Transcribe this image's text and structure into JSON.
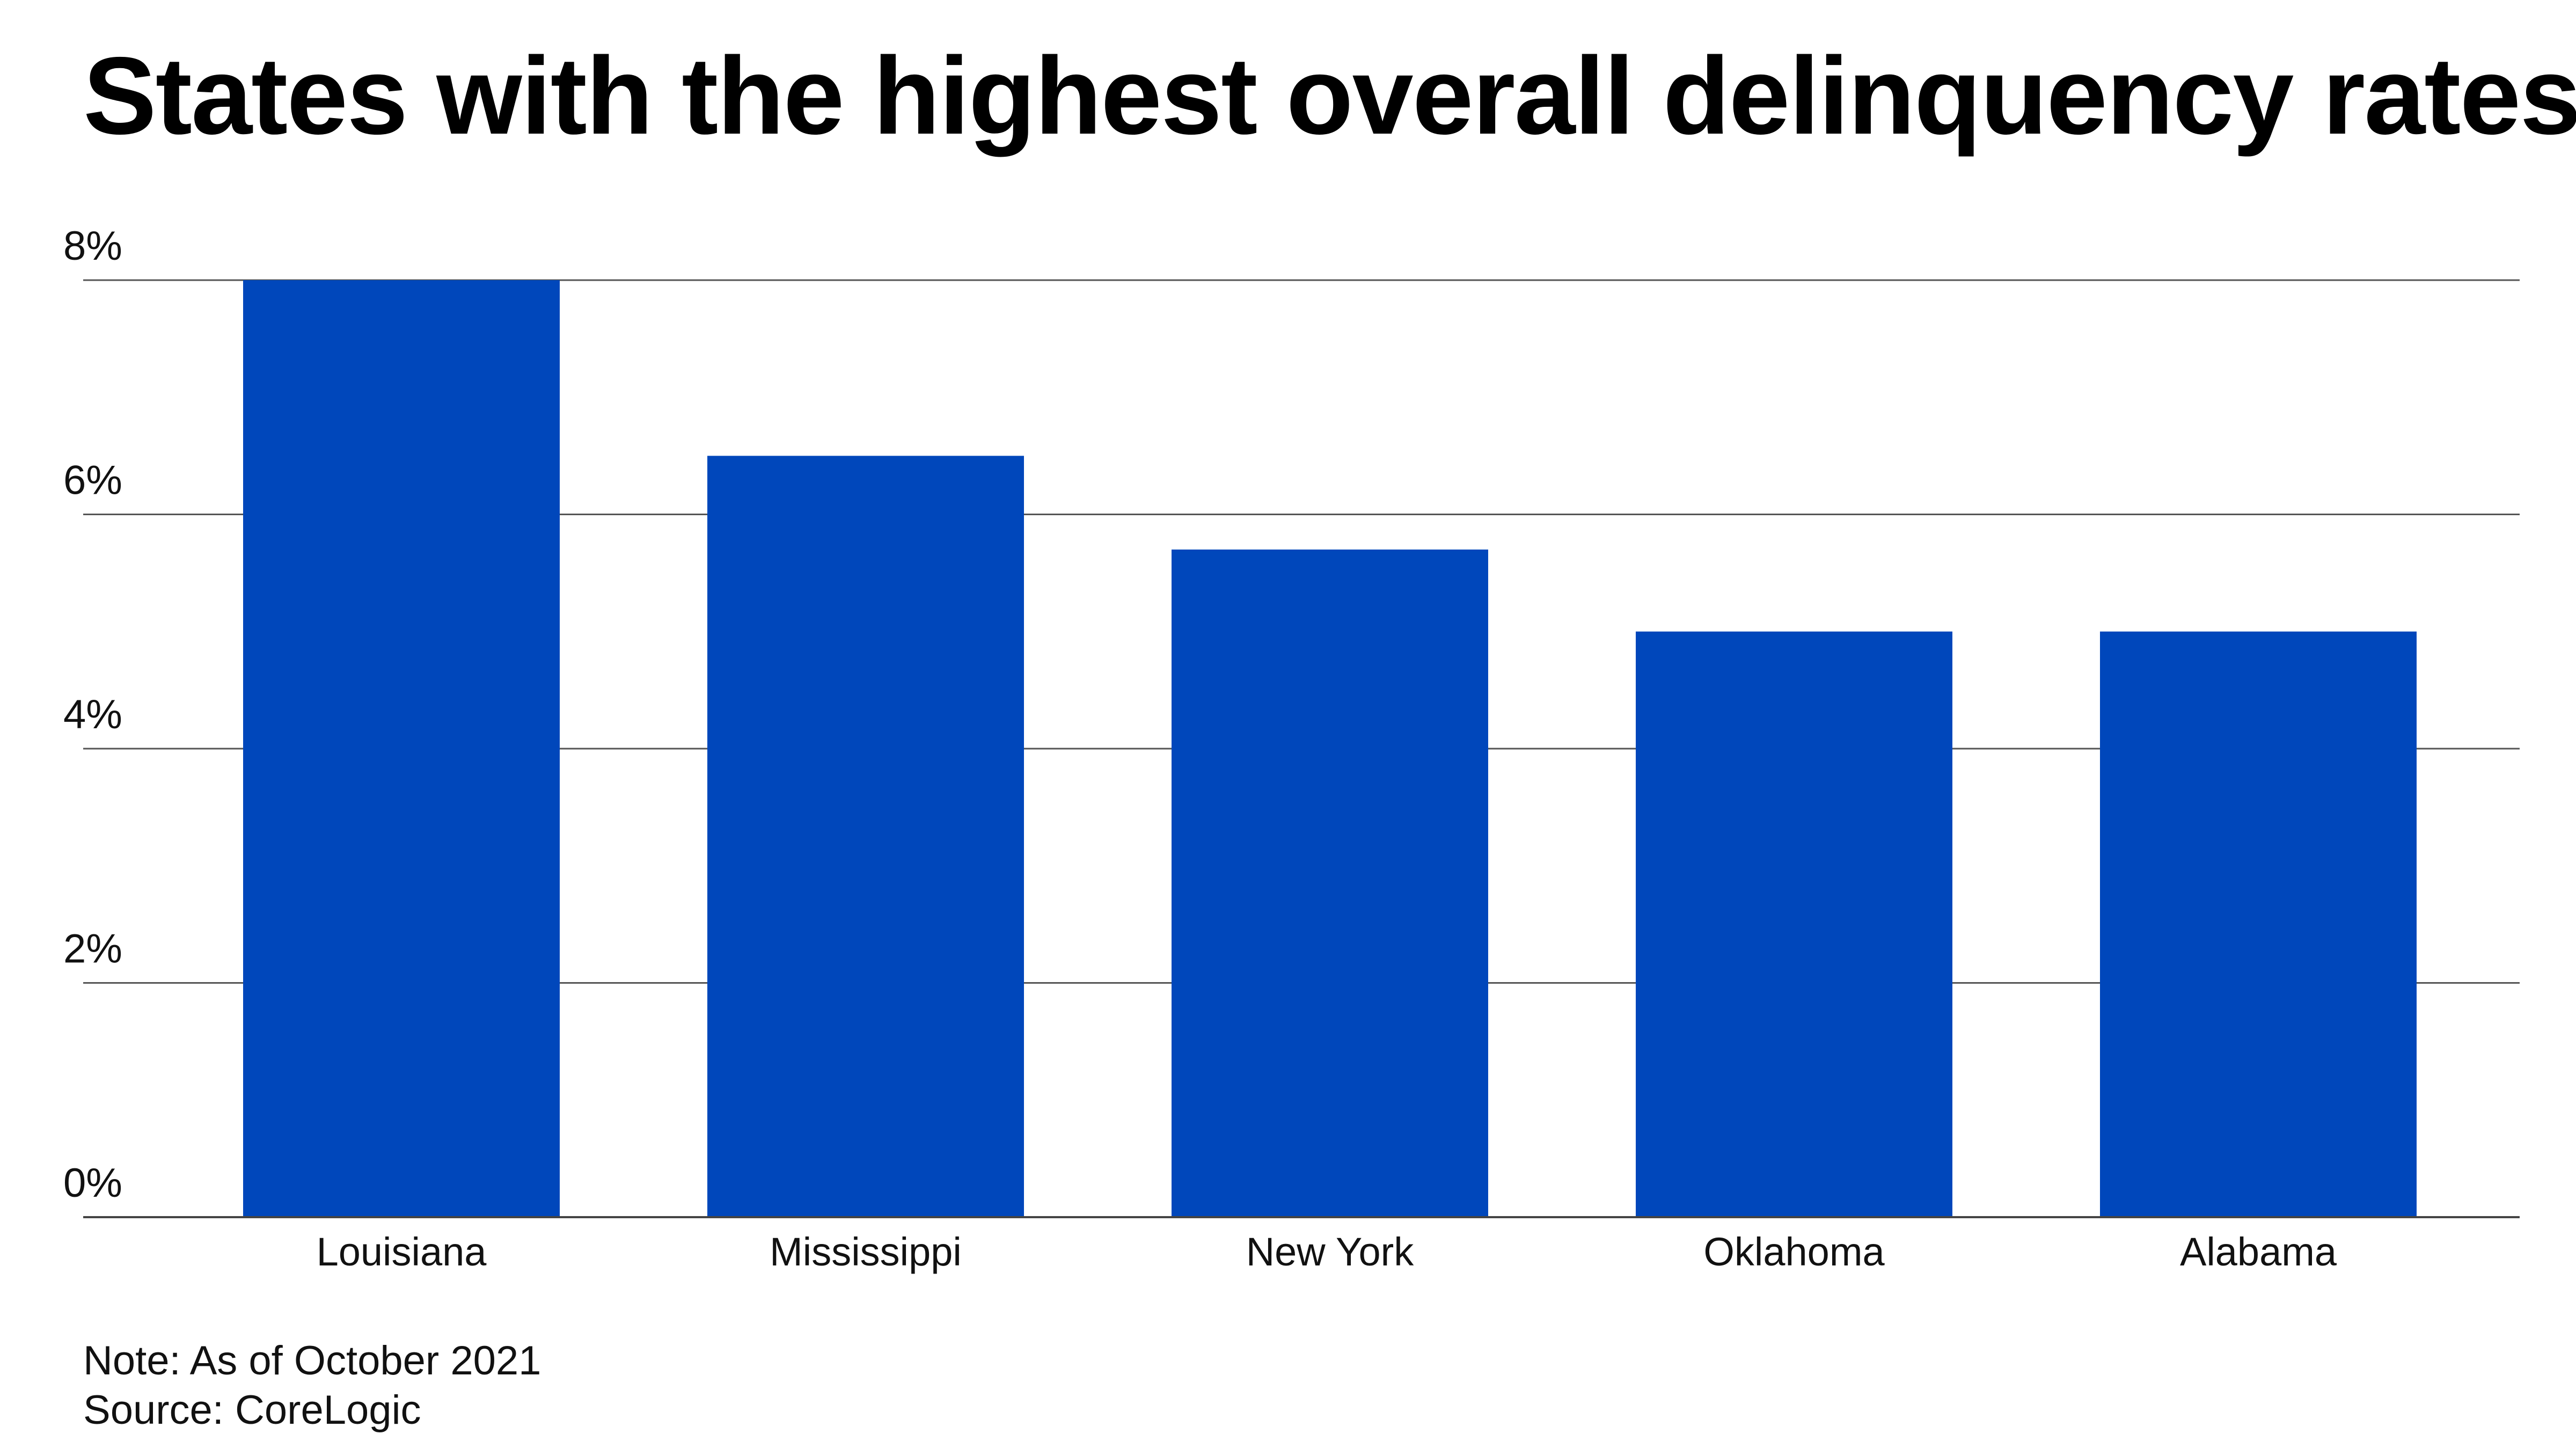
{
  "chart_data": {
    "type": "bar",
    "title": "States with the highest overall delinquency rates",
    "categories": [
      "Louisiana",
      "Mississippi",
      "New York",
      "Oklahoma",
      "Alabama"
    ],
    "values": [
      8.0,
      6.5,
      5.7,
      5.0,
      5.0
    ],
    "xlabel": "",
    "ylabel": "",
    "ylim": [
      0,
      8
    ],
    "yticks": [
      0,
      2,
      4,
      6,
      8
    ],
    "ytick_labels": [
      "0%",
      "2%",
      "4%",
      "6%",
      "8%"
    ],
    "grid": true,
    "legend": "none",
    "bar_color": "#0047BB",
    "note": "Note: As of October 2021",
    "source": "Source: CoreLogic"
  }
}
